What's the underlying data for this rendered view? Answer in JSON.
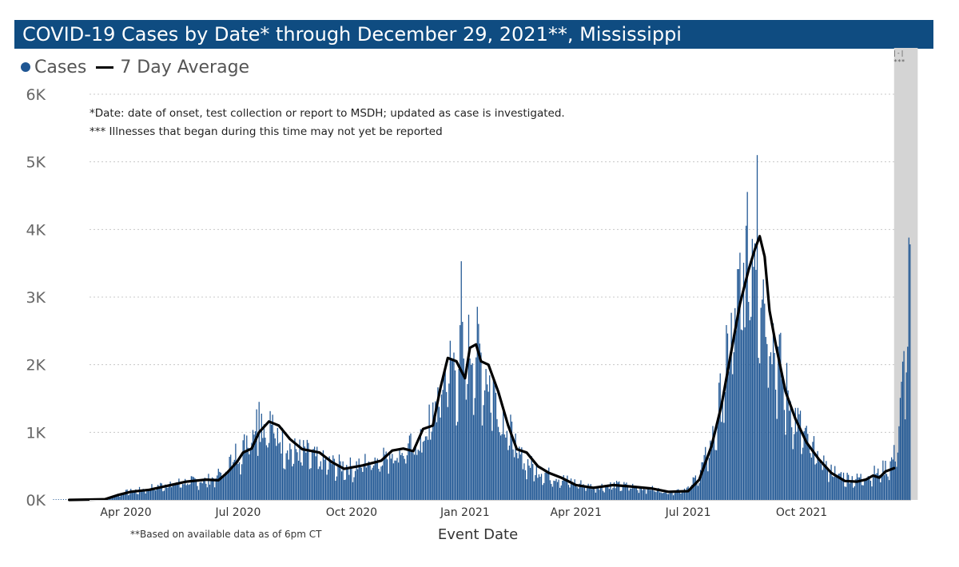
{
  "title": "COVID-19 Cases by Date* through December 29, 2021**, Mississippi",
  "legend": {
    "cases_label": "Cases",
    "avg_label": "7 Day Average"
  },
  "notes": [
    "*Date: date of onset, test collection or report to MSDH; updated as case is investigated.",
    "*** Illnesses that began during this time may not yet be reported"
  ],
  "footnote": "**Based on available data as of 6pm CT",
  "shade_marker": "|-|",
  "shade_note": "***",
  "colors": {
    "bar": "#1f5693",
    "avg": "#000000",
    "title_bg": "#0f4c81",
    "shade": "#d4d4d4"
  },
  "chart_data": {
    "type": "bar",
    "title": "COVID-19 Cases by Date* through December 29, 2021**, Mississippi",
    "xlabel": "Event Date",
    "ylabel": "",
    "ylim": [
      0,
      6000
    ],
    "yticks": [
      {
        "value": 0,
        "label": "0K"
      },
      {
        "value": 1000,
        "label": "1K"
      },
      {
        "value": 2000,
        "label": "2K"
      },
      {
        "value": 3000,
        "label": "3K"
      },
      {
        "value": 4000,
        "label": "4K"
      },
      {
        "value": 5000,
        "label": "5K"
      },
      {
        "value": 6000,
        "label": "6K"
      }
    ],
    "xticks": [
      {
        "date": "2020-04-01",
        "label": "Apr 2020"
      },
      {
        "date": "2020-07-01",
        "label": "Jul 2020"
      },
      {
        "date": "2020-10-01",
        "label": "Oct 2020"
      },
      {
        "date": "2021-01-01",
        "label": "Jan 2021"
      },
      {
        "date": "2021-04-01",
        "label": "Apr 2021"
      },
      {
        "date": "2021-07-01",
        "label": "Jul 2021"
      },
      {
        "date": "2021-10-01",
        "label": "Oct 2021"
      }
    ],
    "xrange": [
      "2020-02-01",
      "2021-12-29"
    ],
    "shaded_range": [
      "2021-12-15",
      "2021-12-29"
    ],
    "grid": true,
    "series": [
      {
        "name": "Cases",
        "kind": "bar",
        "points": [
          [
            "2020-03-10",
            0
          ],
          [
            "2020-03-20",
            40
          ],
          [
            "2020-04-01",
            120
          ],
          [
            "2020-04-15",
            160
          ],
          [
            "2020-05-01",
            230
          ],
          [
            "2020-05-15",
            270
          ],
          [
            "2020-06-01",
            290
          ],
          [
            "2020-06-10",
            320
          ],
          [
            "2020-06-20",
            450
          ],
          [
            "2020-06-28",
            700
          ],
          [
            "2020-07-05",
            750
          ],
          [
            "2020-07-10",
            1100
          ],
          [
            "2020-07-20",
            1200
          ],
          [
            "2020-07-28",
            1150
          ],
          [
            "2020-08-05",
            900
          ],
          [
            "2020-08-15",
            750
          ],
          [
            "2020-08-25",
            720
          ],
          [
            "2020-09-05",
            600
          ],
          [
            "2020-09-15",
            550
          ],
          [
            "2020-10-01",
            500
          ],
          [
            "2020-10-15",
            600
          ],
          [
            "2020-11-01",
            720
          ],
          [
            "2020-11-10",
            760
          ],
          [
            "2020-11-20",
            800
          ],
          [
            "2020-12-01",
            1050
          ],
          [
            "2020-12-10",
            1500
          ],
          [
            "2020-12-18",
            2100
          ],
          [
            "2020-12-25",
            2050
          ],
          [
            "2021-01-02",
            2200
          ],
          [
            "2021-01-08",
            2400
          ],
          [
            "2021-01-15",
            2100
          ],
          [
            "2021-01-25",
            1650
          ],
          [
            "2021-02-05",
            1100
          ],
          [
            "2021-02-15",
            650
          ],
          [
            "2021-03-01",
            450
          ],
          [
            "2021-03-15",
            350
          ],
          [
            "2021-04-01",
            260
          ],
          [
            "2021-04-15",
            200
          ],
          [
            "2021-05-01",
            230
          ],
          [
            "2021-05-15",
            210
          ],
          [
            "2021-06-01",
            170
          ],
          [
            "2021-06-15",
            120
          ],
          [
            "2021-07-01",
            180
          ],
          [
            "2021-07-10",
            400
          ],
          [
            "2021-07-20",
            850
          ],
          [
            "2021-07-28",
            1600
          ],
          [
            "2021-08-05",
            2500
          ],
          [
            "2021-08-12",
            3100
          ],
          [
            "2021-08-18",
            3600
          ],
          [
            "2021-08-23",
            4300
          ],
          [
            "2021-08-26",
            3800
          ],
          [
            "2021-09-01",
            3200
          ],
          [
            "2021-09-08",
            2500
          ],
          [
            "2021-09-15",
            1900
          ],
          [
            "2021-09-25",
            1300
          ],
          [
            "2021-10-05",
            900
          ],
          [
            "2021-10-15",
            650
          ],
          [
            "2021-10-25",
            450
          ],
          [
            "2021-11-05",
            350
          ],
          [
            "2021-11-15",
            320
          ],
          [
            "2021-11-25",
            380
          ],
          [
            "2021-12-05",
            450
          ],
          [
            "2021-12-12",
            550
          ],
          [
            "2021-12-16",
            700
          ],
          [
            "2021-12-20",
            1300
          ],
          [
            "2021-12-23",
            2000
          ],
          [
            "2021-12-26",
            2600
          ],
          [
            "2021-12-28",
            3700
          ]
        ],
        "peaks": [
          [
            "2020-07-18",
            1450
          ],
          [
            "2020-12-29",
            3530
          ],
          [
            "2021-08-26",
            5100
          ],
          [
            "2021-12-28",
            3780
          ]
        ]
      },
      {
        "name": "7 Day Average",
        "kind": "line",
        "points": [
          [
            "2020-02-15",
            0
          ],
          [
            "2020-03-15",
            10
          ],
          [
            "2020-03-25",
            70
          ],
          [
            "2020-04-05",
            120
          ],
          [
            "2020-04-20",
            150
          ],
          [
            "2020-05-05",
            210
          ],
          [
            "2020-05-20",
            270
          ],
          [
            "2020-06-05",
            300
          ],
          [
            "2020-06-15",
            290
          ],
          [
            "2020-06-22",
            400
          ],
          [
            "2020-06-30",
            560
          ],
          [
            "2020-07-05",
            700
          ],
          [
            "2020-07-12",
            760
          ],
          [
            "2020-07-18",
            1000
          ],
          [
            "2020-07-26",
            1160
          ],
          [
            "2020-08-03",
            1100
          ],
          [
            "2020-08-12",
            900
          ],
          [
            "2020-08-22",
            750
          ],
          [
            "2020-09-05",
            700
          ],
          [
            "2020-09-15",
            560
          ],
          [
            "2020-09-25",
            460
          ],
          [
            "2020-10-10",
            510
          ],
          [
            "2020-10-25",
            580
          ],
          [
            "2020-11-03",
            730
          ],
          [
            "2020-11-12",
            760
          ],
          [
            "2020-11-20",
            720
          ],
          [
            "2020-11-28",
            1050
          ],
          [
            "2020-12-06",
            1100
          ],
          [
            "2020-12-12",
            1650
          ],
          [
            "2020-12-18",
            2100
          ],
          [
            "2020-12-25",
            2050
          ],
          [
            "2021-01-01",
            1800
          ],
          [
            "2021-01-05",
            2250
          ],
          [
            "2021-01-10",
            2300
          ],
          [
            "2021-01-14",
            2050
          ],
          [
            "2021-01-20",
            2000
          ],
          [
            "2021-01-28",
            1600
          ],
          [
            "2021-02-05",
            1100
          ],
          [
            "2021-02-12",
            750
          ],
          [
            "2021-02-20",
            700
          ],
          [
            "2021-03-01",
            500
          ],
          [
            "2021-03-10",
            400
          ],
          [
            "2021-03-20",
            330
          ],
          [
            "2021-04-01",
            220
          ],
          [
            "2021-04-15",
            180
          ],
          [
            "2021-05-01",
            220
          ],
          [
            "2021-05-15",
            200
          ],
          [
            "2021-06-01",
            170
          ],
          [
            "2021-06-15",
            120
          ],
          [
            "2021-07-01",
            130
          ],
          [
            "2021-07-10",
            300
          ],
          [
            "2021-07-20",
            800
          ],
          [
            "2021-07-28",
            1400
          ],
          [
            "2021-08-05",
            2200
          ],
          [
            "2021-08-12",
            2900
          ],
          [
            "2021-08-19",
            3400
          ],
          [
            "2021-08-24",
            3700
          ],
          [
            "2021-08-28",
            3900
          ],
          [
            "2021-09-01",
            3600
          ],
          [
            "2021-09-05",
            2800
          ],
          [
            "2021-09-10",
            2300
          ],
          [
            "2021-09-18",
            1600
          ],
          [
            "2021-09-26",
            1200
          ],
          [
            "2021-10-05",
            850
          ],
          [
            "2021-10-15",
            600
          ],
          [
            "2021-10-25",
            400
          ],
          [
            "2021-11-05",
            280
          ],
          [
            "2021-11-15",
            270
          ],
          [
            "2021-11-22",
            300
          ],
          [
            "2021-11-28",
            360
          ],
          [
            "2021-12-03",
            330
          ],
          [
            "2021-12-08",
            420
          ],
          [
            "2021-12-15",
            470
          ]
        ]
      }
    ]
  }
}
